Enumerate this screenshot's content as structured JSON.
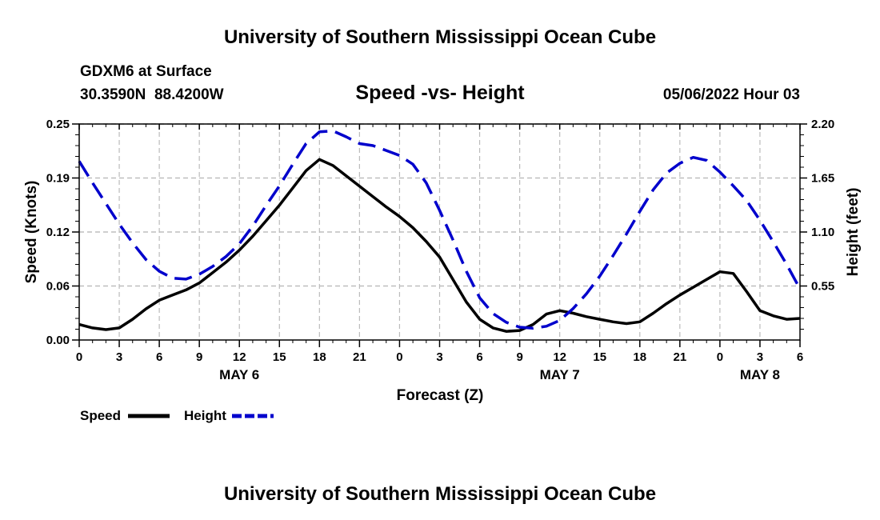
{
  "header": {
    "title_top": "University of Southern Mississippi Ocean Cube",
    "station": "GDXM6 at Surface",
    "coords": "30.3590N  88.4200W",
    "datetime": "05/06/2022 Hour 03",
    "title_bottom": "University of Southern Mississippi Ocean Cube"
  },
  "chart_data": {
    "type": "line",
    "title": "Speed -vs- Height",
    "xlabel": "Forecast (Z)",
    "ylabel": "Speed (Knots)",
    "y2label": "Height (feet)",
    "x_unit": "hours from 2022-05-06 00Z",
    "xlim": [
      0,
      54
    ],
    "ylim": [
      0,
      0.25
    ],
    "y2lim": [
      0,
      2.2
    ],
    "x_ticks": [
      0,
      3,
      6,
      9,
      12,
      15,
      18,
      21,
      24,
      27,
      30,
      33,
      36,
      39,
      42,
      45,
      48,
      51,
      54
    ],
    "x_tick_labels": [
      "0",
      "3",
      "6",
      "9",
      "12",
      "15",
      "18",
      "21",
      "0",
      "3",
      "6",
      "9",
      "12",
      "15",
      "18",
      "21",
      "0",
      "3",
      "6"
    ],
    "y_ticks": [
      0,
      0.0625,
      0.125,
      0.1875,
      0.25
    ],
    "y_tick_labels": [
      "0.00",
      "0.06",
      "0.12",
      "0.19",
      "0.25"
    ],
    "y2_ticks": [
      0.55,
      1.1,
      1.65,
      2.2
    ],
    "y2_tick_labels": [
      "0.55",
      "1.10",
      "1.65",
      "2.20"
    ],
    "date_labels": [
      {
        "x": 12,
        "label": "MAY 6"
      },
      {
        "x": 36,
        "label": "MAY 7"
      },
      {
        "x": 51,
        "label": "MAY 8"
      }
    ],
    "grid": true,
    "series": [
      {
        "name": "Speed",
        "axis": "left",
        "color": "#000000",
        "style": "solid",
        "x": [
          0,
          1,
          2,
          3,
          4,
          5,
          6,
          7,
          8,
          9,
          10,
          11,
          12,
          13,
          14,
          15,
          16,
          17,
          18,
          19,
          20,
          21,
          22,
          23,
          24,
          25,
          26,
          27,
          28,
          29,
          30,
          31,
          32,
          33,
          34,
          35,
          36,
          37,
          38,
          39,
          40,
          41,
          42,
          43,
          44,
          45,
          46,
          47,
          48,
          49,
          50,
          51,
          52,
          53,
          54
        ],
        "values": [
          0.018,
          0.014,
          0.012,
          0.014,
          0.024,
          0.036,
          0.046,
          0.052,
          0.058,
          0.066,
          0.078,
          0.09,
          0.104,
          0.12,
          0.138,
          0.156,
          0.176,
          0.196,
          0.209,
          0.202,
          0.19,
          0.178,
          0.166,
          0.154,
          0.143,
          0.13,
          0.114,
          0.096,
          0.07,
          0.044,
          0.024,
          0.014,
          0.01,
          0.011,
          0.018,
          0.03,
          0.034,
          0.031,
          0.027,
          0.024,
          0.021,
          0.019,
          0.021,
          0.031,
          0.042,
          0.052,
          0.061,
          0.07,
          0.079,
          0.077,
          0.056,
          0.034,
          0.028,
          0.024,
          0.025
        ]
      },
      {
        "name": "Height",
        "axis": "right",
        "color": "#0000cc",
        "style": "dashed",
        "x": [
          0,
          1,
          2,
          3,
          4,
          5,
          6,
          7,
          8,
          9,
          10,
          11,
          12,
          13,
          14,
          15,
          16,
          17,
          18,
          19,
          20,
          21,
          22,
          23,
          24,
          25,
          26,
          27,
          28,
          29,
          30,
          31,
          32,
          33,
          34,
          35,
          36,
          37,
          38,
          39,
          40,
          41,
          42,
          43,
          44,
          45,
          46,
          47,
          48,
          49,
          50,
          51,
          52,
          53,
          54
        ],
        "values": [
          1.82,
          1.6,
          1.39,
          1.18,
          0.99,
          0.82,
          0.7,
          0.63,
          0.62,
          0.67,
          0.75,
          0.85,
          0.98,
          1.16,
          1.37,
          1.57,
          1.79,
          2.0,
          2.12,
          2.13,
          2.07,
          2.0,
          1.98,
          1.93,
          1.88,
          1.79,
          1.6,
          1.32,
          1.02,
          0.7,
          0.43,
          0.27,
          0.18,
          0.13,
          0.12,
          0.14,
          0.2,
          0.32,
          0.47,
          0.65,
          0.86,
          1.08,
          1.31,
          1.53,
          1.7,
          1.8,
          1.86,
          1.83,
          1.71,
          1.57,
          1.42,
          1.22,
          1.0,
          0.77,
          0.52
        ]
      }
    ],
    "legend": [
      {
        "label": "Speed",
        "color": "#000000",
        "style": "solid"
      },
      {
        "label": "Height",
        "color": "#0000cc",
        "style": "dashed"
      }
    ],
    "legend_position": "bottom-left"
  }
}
